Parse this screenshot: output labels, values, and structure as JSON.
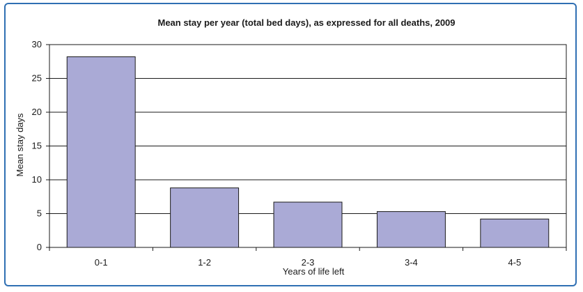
{
  "chart_data": {
    "type": "bar",
    "title": "Mean stay per year (total bed days), as expressed for all deaths, 2009",
    "xlabel": "Years of life left",
    "ylabel": "Mean stay days",
    "categories": [
      "0-1",
      "1-2",
      "2-3",
      "3-4",
      "4-5"
    ],
    "values": [
      28.2,
      8.8,
      6.7,
      5.3,
      4.2
    ],
    "ylim": [
      0,
      30
    ],
    "yticks": [
      "0",
      "5",
      "10",
      "15",
      "20",
      "25",
      "30"
    ],
    "grid": true,
    "legend": "none",
    "colors": {
      "bar": "#aaaad6",
      "bar_edge": "#1a1a1a",
      "frame_border": "#2f6fb3",
      "grid": "#1a1a1a"
    }
  }
}
